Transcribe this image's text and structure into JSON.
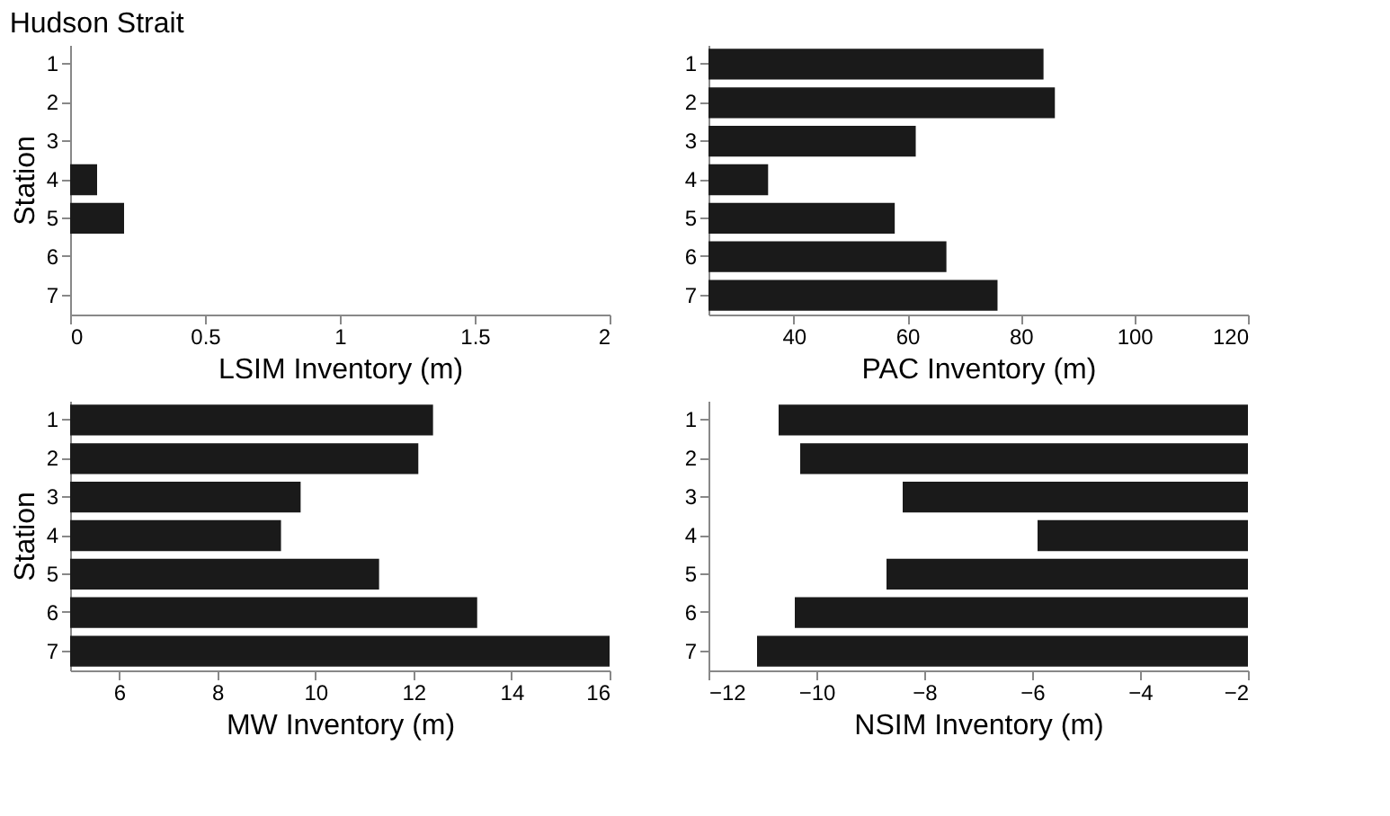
{
  "chart_data": [
    {
      "type": "bar",
      "orientation": "horizontal",
      "title": "Hudson Strait",
      "ylabel": "Station",
      "xlabel": "LSIM Inventory (m)",
      "categories": [
        "1",
        "2",
        "3",
        "4",
        "5",
        "6",
        "7"
      ],
      "values": [
        null,
        null,
        null,
        0.1,
        0.2,
        null,
        null
      ],
      "color": "#1a1a1a",
      "xlim": [
        0,
        2
      ],
      "xticks": [
        0,
        0.5,
        1,
        1.5,
        2
      ],
      "grid": false
    },
    {
      "type": "bar",
      "orientation": "horizontal",
      "xlabel": "PAC Inventory (m)",
      "categories": [
        "1",
        "2",
        "3",
        "4",
        "5",
        "6",
        "7"
      ],
      "values": [
        84,
        86,
        61.5,
        35.5,
        57.8,
        66.9,
        75.9
      ],
      "color": "#1a1a1a",
      "xlim": [
        25,
        120
      ],
      "xticks": [
        40,
        60,
        80,
        100,
        120
      ],
      "grid": false
    },
    {
      "type": "bar",
      "orientation": "horizontal",
      "ylabel": "Station",
      "xlabel": "MW Inventory (m)",
      "categories": [
        "1",
        "2",
        "3",
        "4",
        "5",
        "6",
        "7"
      ],
      "values": [
        12.4,
        12.1,
        9.7,
        9.3,
        11.3,
        13.3,
        16
      ],
      "color": "#1a1a1a",
      "xlim": [
        5,
        16
      ],
      "xticks": [
        6,
        8,
        10,
        12,
        14,
        16
      ],
      "grid": false
    },
    {
      "type": "bar",
      "orientation": "horizontal",
      "xlabel": "NSIM Inventory (m)",
      "categories": [
        "1",
        "2",
        "3",
        "4",
        "5",
        "6",
        "7"
      ],
      "values": [
        -10.7,
        -10.3,
        -8.4,
        -5.9,
        -8.7,
        -10.4,
        -11.1
      ],
      "color": "#1a1a1a",
      "xlim": [
        -12,
        -2
      ],
      "xticks": [
        -12,
        -10,
        -8,
        -6,
        -4,
        -2
      ],
      "grid": false
    }
  ]
}
